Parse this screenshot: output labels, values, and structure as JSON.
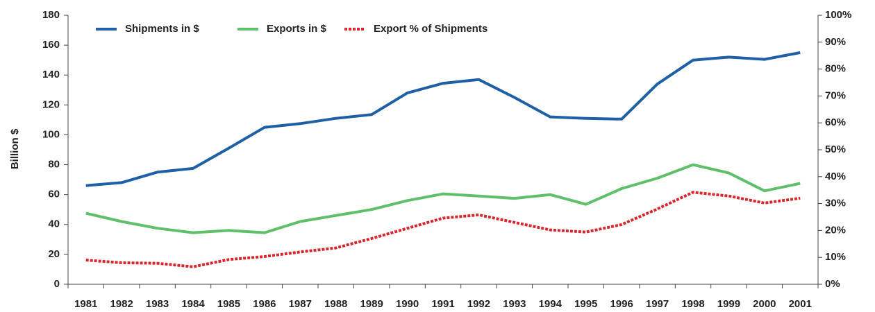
{
  "chart_data": {
    "type": "line",
    "ylabel": "Billion $",
    "categories": [
      "1981",
      "1982",
      "1983",
      "1984",
      "1985",
      "1986",
      "1987",
      "1988",
      "1989",
      "1990",
      "1991",
      "1992",
      "1993",
      "1994",
      "1995",
      "1996",
      "1997",
      "1998",
      "1999",
      "2000",
      "2001"
    ],
    "series": [
      {
        "name": "Shipments in $",
        "color": "#1f5fa6",
        "style": "solid",
        "values": [
          66,
          68,
          75,
          77.5,
          91,
          105,
          107.5,
          111,
          113.5,
          128,
          134.5,
          137,
          125,
          112,
          111,
          110.5,
          134,
          150,
          152,
          150.5,
          155
        ]
      },
      {
        "name": "Exports in $",
        "color": "#5fbf6a",
        "style": "solid",
        "values": [
          47.5,
          42,
          37.5,
          34.5,
          36,
          34.5,
          42,
          46,
          50,
          56,
          60.5,
          59,
          57.5,
          60,
          53.5,
          64,
          71,
          80,
          74.5,
          62.5,
          67.5
        ]
      },
      {
        "name": "Export % of Shipments",
        "color": "#d7262e",
        "style": "dashed",
        "axis": "y2",
        "values": [
          9,
          8,
          7.8,
          6.5,
          9.2,
          10.3,
          12,
          13.5,
          17,
          20.8,
          24.6,
          25.8,
          23,
          20.2,
          19.4,
          22.2,
          28,
          34.2,
          32.8,
          30.2,
          32
        ]
      }
    ],
    "ylim": [
      0,
      180
    ],
    "yticks": [
      0,
      20,
      40,
      60,
      80,
      100,
      120,
      140,
      160,
      180
    ],
    "y2lim": [
      0,
      100
    ],
    "y2ticks": [
      {
        "value": 0,
        "label": "0%"
      },
      {
        "value": 10,
        "label": "10%"
      },
      {
        "value": 20,
        "label": "20%"
      },
      {
        "value": 30,
        "label": "30%"
      },
      {
        "value": 40,
        "label": "40%"
      },
      {
        "value": 50,
        "label": "50%"
      },
      {
        "value": 60,
        "label": "60%"
      },
      {
        "value": 70,
        "label": "70%"
      },
      {
        "value": 80,
        "label": "80%"
      },
      {
        "value": 90,
        "label": "90%"
      },
      {
        "value": 100,
        "label": "100%"
      }
    ],
    "legend": "top-left"
  }
}
